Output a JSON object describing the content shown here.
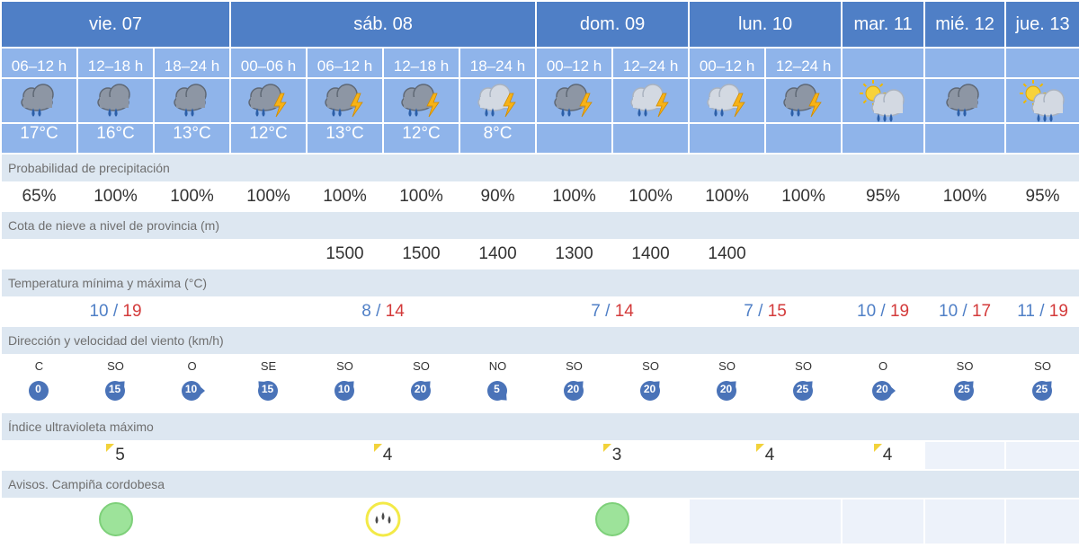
{
  "days": [
    {
      "label": "vie. 07",
      "span": 3
    },
    {
      "label": "sáb. 08",
      "span": 4
    },
    {
      "label": "dom. 09",
      "span": 2
    },
    {
      "label": "lun. 10",
      "span": 2
    },
    {
      "label": "mar. 11",
      "span": 1
    },
    {
      "label": "mié. 12",
      "span": 1
    },
    {
      "label": "jue. 13",
      "span": 1
    }
  ],
  "periods": [
    {
      "label": "06–12 h",
      "icon": "rain-cloud-icon",
      "temp": "17°C"
    },
    {
      "label": "12–18 h",
      "icon": "rain-cloud-icon",
      "temp": "16°C"
    },
    {
      "label": "18–24 h",
      "icon": "rain-cloud-icon",
      "temp": "13°C"
    },
    {
      "label": "00–06 h",
      "icon": "storm-cloud-icon",
      "temp": "12°C"
    },
    {
      "label": "06–12 h",
      "icon": "storm-cloud-icon",
      "temp": "13°C"
    },
    {
      "label": "12–18 h",
      "icon": "storm-cloud-icon",
      "temp": "12°C"
    },
    {
      "label": "18–24 h",
      "icon": "storm-cloud-light-icon",
      "temp": "8°C"
    },
    {
      "label": "00–12 h",
      "icon": "storm-cloud-icon",
      "temp": ""
    },
    {
      "label": "12–24 h",
      "icon": "storm-cloud-light-icon",
      "temp": ""
    },
    {
      "label": "00–12 h",
      "icon": "storm-cloud-light-icon",
      "temp": ""
    },
    {
      "label": "12–24 h",
      "icon": "storm-cloud-icon",
      "temp": ""
    },
    {
      "label": "",
      "icon": "sun-rain-cloud-icon",
      "temp": ""
    },
    {
      "label": "",
      "icon": "rain-cloud-icon",
      "temp": ""
    },
    {
      "label": "",
      "icon": "sun-rain-cloud-icon",
      "temp": ""
    }
  ],
  "labels": {
    "precip": "Probabilidad de precipitación",
    "snow": "Cota de nieve a nivel de provincia (m)",
    "temp_minmax": "Temperatura mínima y máxima (°C)",
    "wind": "Dirección y velocidad del viento (km/h)",
    "uv": "Índice ultravioleta máximo",
    "avisos": "Avisos. Campiña cordobesa"
  },
  "precip": [
    "65%",
    "100%",
    "100%",
    "100%",
    "100%",
    "100%",
    "90%",
    "100%",
    "100%",
    "100%",
    "100%",
    "95%",
    "100%",
    "95%"
  ],
  "snow": [
    "",
    "",
    "",
    "",
    "1500",
    "1500",
    "1400",
    "1300",
    "1400",
    "1400",
    "",
    "",
    "",
    ""
  ],
  "minmax": [
    {
      "min": "10",
      "max": "19"
    },
    {
      "min": "8",
      "max": "14"
    },
    {
      "min": "7",
      "max": "14"
    },
    {
      "min": "7",
      "max": "15"
    },
    {
      "min": "10",
      "max": "19"
    },
    {
      "min": "10",
      "max": "17"
    },
    {
      "min": "11",
      "max": "19"
    }
  ],
  "wind": [
    {
      "dir": "C",
      "speed": "0"
    },
    {
      "dir": "SO",
      "speed": "15"
    },
    {
      "dir": "O",
      "speed": "10"
    },
    {
      "dir": "SE",
      "speed": "15"
    },
    {
      "dir": "SO",
      "speed": "10"
    },
    {
      "dir": "SO",
      "speed": "20"
    },
    {
      "dir": "NO",
      "speed": "5"
    },
    {
      "dir": "SO",
      "speed": "20"
    },
    {
      "dir": "SO",
      "speed": "20"
    },
    {
      "dir": "SO",
      "speed": "20"
    },
    {
      "dir": "SO",
      "speed": "25"
    },
    {
      "dir": "O",
      "speed": "20"
    },
    {
      "dir": "SO",
      "speed": "25"
    },
    {
      "dir": "SO",
      "speed": "25"
    }
  ],
  "uv": [
    "5",
    "4",
    "3",
    "4",
    "4",
    "",
    ""
  ],
  "avisos": [
    {
      "level": "green",
      "icon": "no-warning-icon"
    },
    {
      "level": "yellow",
      "icon": "rain-warning-icon"
    },
    {
      "level": "green",
      "icon": "no-warning-icon"
    },
    {
      "level": "",
      "icon": ""
    },
    {
      "level": "",
      "icon": ""
    },
    {
      "level": "",
      "icon": ""
    },
    {
      "level": "",
      "icon": ""
    }
  ],
  "colors": {
    "header": "#4f7fc6",
    "subheader": "#8fb4ea",
    "label_bg": "#dde7f1",
    "max_temp": "#d33a3a",
    "min_temp": "#4f7fc6",
    "wind_badge": "#4a73b8",
    "uv_flag": "#f2d23a",
    "aviso_green": "#9de39a",
    "aviso_yellow": "#f3ea48"
  }
}
